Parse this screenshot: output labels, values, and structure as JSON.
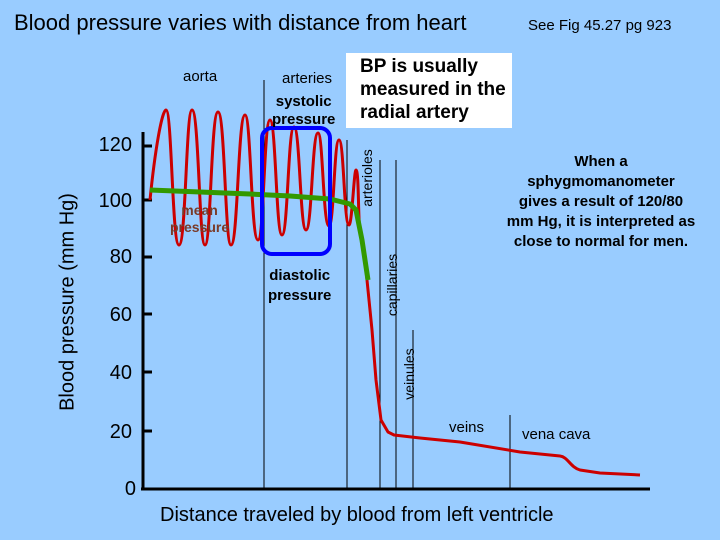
{
  "title": "Blood pressure varies with distance from heart",
  "reference": "See Fig 45.27 pg 923",
  "axes": {
    "y_label": "Blood pressure (mm Hg)",
    "x_label": "Distance traveled by blood from left ventricle",
    "y_ticks": [
      "120",
      "100",
      "80",
      "60",
      "40",
      "20",
      "0"
    ]
  },
  "labels": {
    "aorta": "aorta",
    "arteries": "arteries",
    "systolic_line1": "systolic",
    "systolic_line2": "pressure",
    "diastolic_line1": "diastolic",
    "diastolic_line2": "pressure",
    "mean_line1": "mean",
    "mean_line2": "pressure",
    "arterioles": "arterioles",
    "capillaries": "capillaries",
    "venules": "veinules",
    "veins": "veins",
    "vena_cava": "vena cava"
  },
  "callout_box": "BP is usually measured in the radial artery",
  "note": "When a sphygmomanometer gives a result of 120/80 mm Hg, it is interpreted as close to normal for men.",
  "colors": {
    "background": "#99ccff",
    "pressure_curve": "#cc0000",
    "mean_curve": "#339900",
    "highlight_box": "#0000ff",
    "axis": "#000000"
  }
}
